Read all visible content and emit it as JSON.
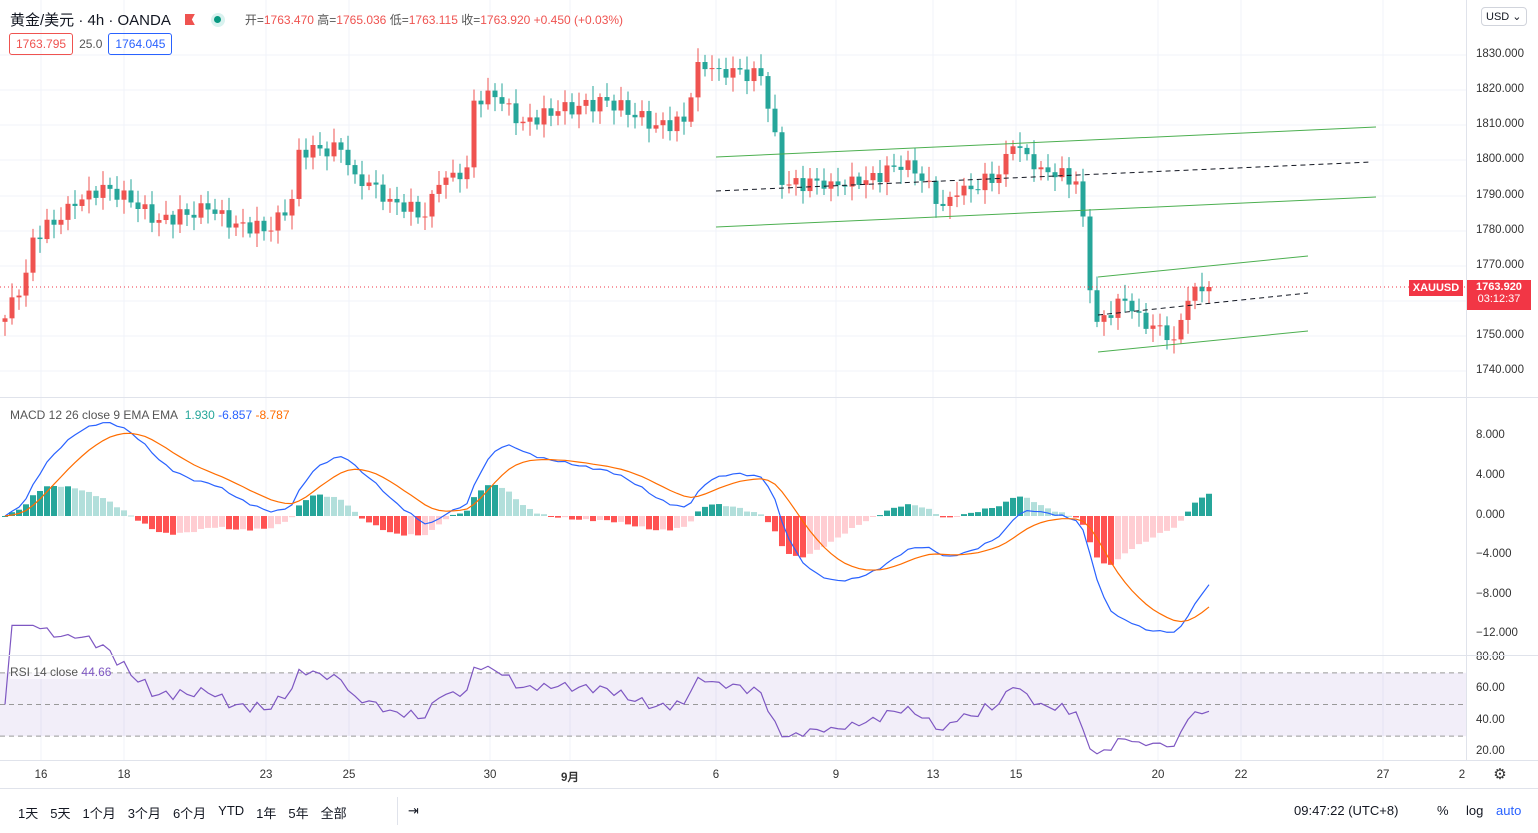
{
  "header": {
    "symbol": "黄金/美元 · 4h · OANDA",
    "open_label": "开=",
    "open": "1763.470",
    "high_label": "高=",
    "high": "1765.036",
    "low_label": "低=",
    "low": "1763.115",
    "close_label": "收=",
    "close": "1763.920",
    "change": "+0.450 (+0.03%)",
    "bid": "1763.795",
    "spread": "25.0",
    "ask": "1764.045"
  },
  "price_axis": {
    "currency": "USD ⌄",
    "ticks": [
      "1830.000",
      "1820.000",
      "1810.000",
      "1800.000",
      "1790.000",
      "1780.000",
      "1770.000",
      "1750.000",
      "1740.000"
    ],
    "symbol_tag": "XAUUSD",
    "last_price": "1763.920",
    "countdown": "03:12:37"
  },
  "macd": {
    "label": "MACD 12 26 close 9 EMA EMA",
    "hist": "1.930",
    "macd": "-6.857",
    "signal": "-8.787",
    "ticks": [
      "8.000",
      "4.000",
      "0.000",
      "−4.000",
      "−8.000",
      "−12.000"
    ]
  },
  "rsi": {
    "label": "RSI 14 close",
    "value": "44.66",
    "ticks": [
      "80.00",
      "60.00",
      "40.00",
      "20.00"
    ]
  },
  "time_axis": {
    "labels": [
      "16",
      "18",
      "23",
      "25",
      "30",
      "9月",
      "6",
      "9",
      "13",
      "15",
      "20",
      "22",
      "27",
      "2"
    ]
  },
  "toolbar": {
    "ranges": [
      "1天",
      "5天",
      "1个月",
      "3个月",
      "6个月",
      "YTD",
      "1年",
      "5年",
      "全部"
    ],
    "goto": "⇥",
    "clock": "09:47:22 (UTC+8)",
    "percent": "%",
    "log": "log",
    "auto": "auto"
  },
  "colors": {
    "up": "#ef5350",
    "down": "#26a69a",
    "macd": "#2962ff",
    "signal": "#ff6d00",
    "rsi": "#7e57c2"
  },
  "chart_data": {
    "type": "candlestick",
    "interval": "4h",
    "ylim": [
      1736,
      1840
    ],
    "close_path": [
      [
        0,
        1755
      ],
      [
        3,
        1768
      ],
      [
        4,
        1778
      ],
      [
        10,
        1787
      ],
      [
        14,
        1793
      ],
      [
        18,
        1788
      ],
      [
        22,
        1783
      ],
      [
        29,
        1786
      ],
      [
        33,
        1782
      ],
      [
        38,
        1780
      ],
      [
        41,
        1789
      ],
      [
        42,
        1803
      ],
      [
        48,
        1803
      ],
      [
        50,
        1796
      ],
      [
        55,
        1789
      ],
      [
        60,
        1784
      ],
      [
        62,
        1793
      ],
      [
        66,
        1798
      ],
      [
        67,
        1817
      ],
      [
        70,
        1818
      ],
      [
        74,
        1811
      ],
      [
        79,
        1814
      ],
      [
        86,
        1817
      ],
      [
        93,
        1810
      ],
      [
        97,
        1811
      ],
      [
        99,
        1828
      ],
      [
        102,
        1826
      ],
      [
        108,
        1824
      ],
      [
        110,
        1808
      ],
      [
        111,
        1793
      ],
      [
        118,
        1794
      ],
      [
        122,
        1793
      ],
      [
        129,
        1800
      ],
      [
        134,
        1787
      ],
      [
        136,
        1790
      ],
      [
        142,
        1796
      ],
      [
        144,
        1804
      ],
      [
        148,
        1798
      ],
      [
        153,
        1794
      ],
      [
        154,
        1784
      ],
      [
        155,
        1763
      ],
      [
        156,
        1754
      ],
      [
        160,
        1760
      ],
      [
        161,
        1757
      ],
      [
        163,
        1752
      ],
      [
        165,
        1753
      ],
      [
        167,
        1749
      ],
      [
        169,
        1760
      ],
      [
        170,
        1764
      ],
      [
        172,
        1763.92
      ]
    ]
  }
}
